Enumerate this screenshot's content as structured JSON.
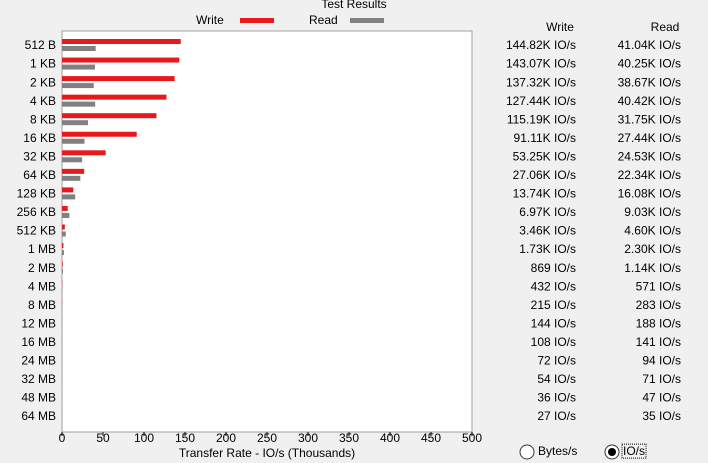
{
  "chart_data": {
    "type": "bar",
    "orientation": "horizontal",
    "title": "Test Results",
    "x_label": "Transfer Rate - IO/s (Thousands)",
    "categories": [
      "512 B",
      "1 KB",
      "2 KB",
      "4 KB",
      "8 KB",
      "16 KB",
      "32 KB",
      "64 KB",
      "128 KB",
      "256 KB",
      "512 KB",
      "1 MB",
      "2 MB",
      "4 MB",
      "8 MB",
      "12 MB",
      "16 MB",
      "24 MB",
      "32 MB",
      "48 MB",
      "64 MB"
    ],
    "series": [
      {
        "name": "Write",
        "color": "#e8191c",
        "values": [
          144.82,
          143.07,
          137.32,
          127.44,
          115.19,
          91.11,
          53.25,
          27.06,
          13.74,
          6.97,
          3.46,
          1.73,
          0.869,
          0.432,
          0.215,
          0.144,
          0.108,
          0.072,
          0.054,
          0.036,
          0.027
        ],
        "value_labels": [
          "144.82K IO/s",
          "143.07K IO/s",
          "137.32K IO/s",
          "127.44K IO/s",
          "115.19K IO/s",
          "91.11K IO/s",
          "53.25K IO/s",
          "27.06K IO/s",
          "13.74K IO/s",
          "6.97K IO/s",
          "3.46K IO/s",
          "1.73K IO/s",
          "869 IO/s",
          "432 IO/s",
          "215 IO/s",
          "144 IO/s",
          "108 IO/s",
          "72 IO/s",
          "54 IO/s",
          "36 IO/s",
          "27 IO/s"
        ]
      },
      {
        "name": "Read",
        "color": "#808080",
        "values": [
          41.04,
          40.25,
          38.67,
          40.42,
          31.75,
          27.44,
          24.53,
          22.34,
          16.08,
          9.03,
          4.6,
          2.3,
          1.14,
          0.571,
          0.283,
          0.188,
          0.141,
          0.094,
          0.071,
          0.047,
          0.035
        ],
        "value_labels": [
          "41.04K IO/s",
          "40.25K IO/s",
          "38.67K IO/s",
          "40.42K IO/s",
          "31.75K IO/s",
          "27.44K IO/s",
          "24.53K IO/s",
          "22.34K IO/s",
          "16.08K IO/s",
          "9.03K IO/s",
          "4.60K IO/s",
          "2.30K IO/s",
          "1.14K IO/s",
          "571 IO/s",
          "283 IO/s",
          "188 IO/s",
          "141 IO/s",
          "94 IO/s",
          "71 IO/s",
          "47 IO/s",
          "35 IO/s"
        ]
      }
    ],
    "xlim": [
      0,
      500
    ],
    "xticks": [
      0,
      50,
      100,
      150,
      200,
      250,
      300,
      350,
      400,
      450,
      500
    ],
    "grid": false
  },
  "controls": {
    "options": [
      "Bytes/s",
      "IO/s"
    ],
    "selected": 1
  }
}
